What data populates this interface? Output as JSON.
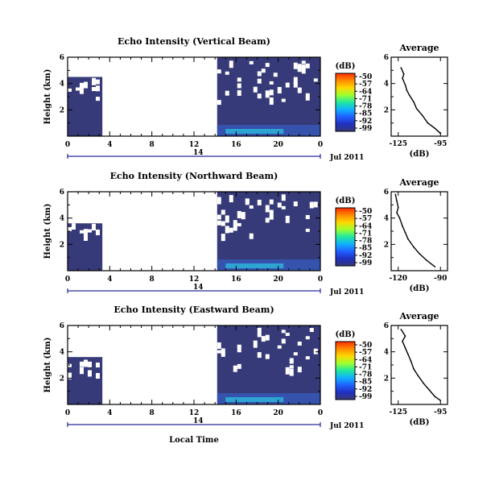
{
  "chart_data": [
    {
      "type": "heatmap",
      "title": "Echo Intensity (Vertical Beam)",
      "ylabel": "Height (km)",
      "xlabel": "",
      "date_label": "Jul 2011",
      "day_label": "14",
      "x_ticks": [
        "0",
        "4",
        "8",
        "12",
        "16",
        "20",
        "0"
      ],
      "y_ticks": [
        "2",
        "4",
        "6"
      ],
      "xlim": [
        0,
        24
      ],
      "ylim": [
        0,
        6
      ],
      "colorbar": {
        "unit": "(dB)",
        "ticks": [
          "-50",
          "-57",
          "-64",
          "-71",
          "-78",
          "-85",
          "-92",
          "-99"
        ]
      },
      "data_segments": [
        {
          "x_start": 0,
          "x_end": 3.3,
          "top_km": 4.5,
          "note": "low intensity"
        },
        {
          "x_start": 14.2,
          "x_end": 24,
          "top_km": 6.0,
          "note": "enhanced echo near surface 15-20h"
        }
      ],
      "average": {
        "title": "Average",
        "xlabel": "(dB)",
        "x_ticks": [
          "-125",
          "-95"
        ],
        "y_ticks": [
          "2",
          "4",
          "6"
        ],
        "xlim": [
          -130,
          -90
        ],
        "profile": [
          [
            -123,
            5.2
          ],
          [
            -121,
            4.7
          ],
          [
            -122,
            4.4
          ],
          [
            -120,
            3.9
          ],
          [
            -119,
            3.5
          ],
          [
            -117,
            3.1
          ],
          [
            -114,
            2.6
          ],
          [
            -112,
            2.1
          ],
          [
            -108,
            1.6
          ],
          [
            -104,
            1.0
          ],
          [
            -99,
            0.6
          ],
          [
            -95,
            0.2
          ]
        ]
      }
    },
    {
      "type": "heatmap",
      "title": "Echo Intensity (Northward Beam)",
      "ylabel": "Height (km)",
      "xlabel": "",
      "date_label": "Jul 2011",
      "day_label": "14",
      "x_ticks": [
        "0",
        "4",
        "8",
        "12",
        "16",
        "20",
        "0"
      ],
      "y_ticks": [
        "2",
        "4",
        "6"
      ],
      "xlim": [
        0,
        24
      ],
      "ylim": [
        0,
        6
      ],
      "colorbar": {
        "unit": "(dB)",
        "ticks": [
          "-50",
          "-57",
          "-64",
          "-71",
          "-78",
          "-85",
          "-92",
          "-99"
        ]
      },
      "data_segments": [
        {
          "x_start": 0,
          "x_end": 3.3,
          "top_km": 3.6,
          "note": "low intensity"
        },
        {
          "x_start": 14.2,
          "x_end": 24,
          "top_km": 6.0,
          "note": "weak enhancement near surface"
        }
      ],
      "average": {
        "title": "Average",
        "xlabel": "(dB)",
        "x_ticks": [
          "-120",
          "-90"
        ],
        "y_ticks": [
          "2",
          "4",
          "6"
        ],
        "xlim": [
          -125,
          -85
        ],
        "profile": [
          [
            -122,
            5.8
          ],
          [
            -121,
            5.3
          ],
          [
            -120,
            4.8
          ],
          [
            -121,
            4.4
          ],
          [
            -119,
            4.0
          ],
          [
            -117,
            3.4
          ],
          [
            -115,
            2.9
          ],
          [
            -113,
            2.4
          ],
          [
            -109,
            1.8
          ],
          [
            -105,
            1.3
          ],
          [
            -100,
            0.8
          ],
          [
            -94,
            0.3
          ]
        ]
      }
    },
    {
      "type": "heatmap",
      "title": "Echo Intensity (Eastward Beam)",
      "ylabel": "Height (km)",
      "xlabel": "Local Time",
      "date_label": "Jul 2011",
      "day_label": "14",
      "x_ticks": [
        "0",
        "4",
        "8",
        "12",
        "16",
        "20",
        "0"
      ],
      "y_ticks": [
        "2",
        "4",
        "6"
      ],
      "xlim": [
        0,
        24
      ],
      "ylim": [
        0,
        6
      ],
      "colorbar": {
        "unit": "(dB)",
        "ticks": [
          "-50",
          "-57",
          "-64",
          "-71",
          "-78",
          "-85",
          "-92",
          "-99"
        ]
      },
      "data_segments": [
        {
          "x_start": 0,
          "x_end": 3.3,
          "top_km": 3.6,
          "note": "low intensity"
        },
        {
          "x_start": 14.2,
          "x_end": 24,
          "top_km": 6.0,
          "note": "enhanced echo near surface 15-20h"
        }
      ],
      "average": {
        "title": "Average",
        "xlabel": "(dB)",
        "x_ticks": [
          "-125",
          "-95"
        ],
        "y_ticks": [
          "2",
          "4",
          "6"
        ],
        "xlim": [
          -130,
          -90
        ],
        "profile": [
          [
            -123,
            5.7
          ],
          [
            -120,
            5.2
          ],
          [
            -122,
            4.8
          ],
          [
            -120,
            4.3
          ],
          [
            -118,
            3.8
          ],
          [
            -116,
            3.3
          ],
          [
            -114,
            2.7
          ],
          [
            -111,
            2.2
          ],
          [
            -107,
            1.6
          ],
          [
            -103,
            1.1
          ],
          [
            -99,
            0.6
          ],
          [
            -95,
            0.3
          ]
        ]
      }
    }
  ],
  "colors": {
    "background_fill": "#363a78",
    "surface_light": "#3566d8",
    "surface_cyan": "#2cc0e0",
    "axis": "#000000",
    "baseline": "#2a2a9a"
  },
  "colorbar_stops": [
    "#ff2a00",
    "#ff8c00",
    "#ffd800",
    "#9cff30",
    "#20e8a0",
    "#10b0ff",
    "#2060ff",
    "#2030c0",
    "#353a78"
  ]
}
